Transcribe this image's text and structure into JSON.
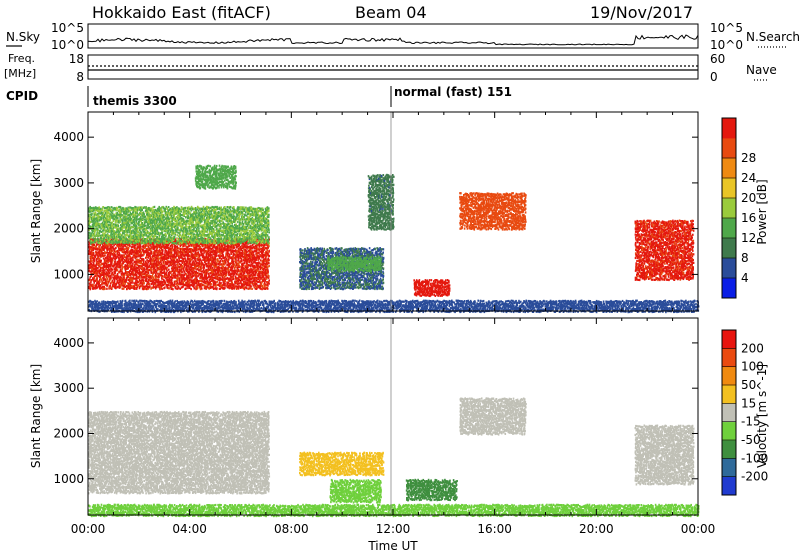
{
  "header": {
    "title": "Hokkaido East (fitACF)",
    "beam": "Beam 04",
    "date": "19/Nov/2017"
  },
  "colors": {
    "ink": "#000000",
    "background": "#ffffff",
    "no_data": "#ffffff"
  },
  "noise_panel": {
    "left_label": "N.Sky",
    "right_label": "N.Search",
    "left_ticks": [
      "10^5",
      "10^0"
    ],
    "right_ticks": [
      "10^5",
      "10^0"
    ]
  },
  "freq_panel": {
    "left_label": "Freq.",
    "left_unit": "[MHz]",
    "right_label": "Nave",
    "left_ticks": [
      "18",
      "8"
    ],
    "right_ticks": [
      "60",
      "0"
    ]
  },
  "cpid": {
    "label": "CPID",
    "entries": [
      "themis 3300",
      "normal (fast) 151"
    ]
  },
  "chart_data": [
    {
      "type": "heatmap",
      "title": "",
      "quantity": "Power",
      "xlabel": "",
      "ylabel": "Slant Range [km]",
      "colorbar_label": "Power [dB]",
      "colorbar_ticks": [
        "4",
        "8",
        "12",
        "16",
        "20",
        "24",
        "28"
      ],
      "colorbar_range": [
        0,
        32
      ],
      "colorbar_colors": [
        "#0a1ee6",
        "#2a4c9a",
        "#3f7a4c",
        "#4fa84a",
        "#9acb3c",
        "#e9c526",
        "#ef8a12",
        "#e84a10",
        "#e4180e"
      ],
      "ylim": [
        200,
        4550
      ],
      "yticks": [
        1000,
        2000,
        3000,
        4000
      ],
      "xlim": [
        "00:00",
        "24:00"
      ],
      "features": [
        {
          "t": [
            0.0,
            7.1
          ],
          "range": [
            700,
            1800
          ],
          "value": 29
        },
        {
          "t": [
            0.0,
            7.1
          ],
          "range": [
            1700,
            2500
          ],
          "value": 14
        },
        {
          "t": [
            4.2,
            5.8
          ],
          "range": [
            2900,
            3400
          ],
          "value": 12
        },
        {
          "t": [
            8.3,
            11.6
          ],
          "range": [
            700,
            1600
          ],
          "value": 7
        },
        {
          "t": [
            9.4,
            11.5
          ],
          "range": [
            1100,
            1400
          ],
          "value": 13
        },
        {
          "t": [
            11.0,
            12.0
          ],
          "range": [
            2000,
            3200
          ],
          "value": 8
        },
        {
          "t": [
            12.8,
            14.2
          ],
          "range": [
            550,
            900
          ],
          "value": 30
        },
        {
          "t": [
            14.6,
            17.2
          ],
          "range": [
            2000,
            2800
          ],
          "value": 26
        },
        {
          "t": [
            21.5,
            23.8
          ],
          "range": [
            900,
            2200
          ],
          "value": 29
        },
        {
          "t": [
            0.0,
            24.0
          ],
          "range": [
            200,
            450
          ],
          "value": 5
        }
      ]
    },
    {
      "type": "heatmap",
      "title": "",
      "quantity": "Velocity",
      "xlabel": "Time UT",
      "ylabel": "Slant Range [km]",
      "colorbar_label": "Velocity [m s^-1]",
      "colorbar_ticks": [
        "200",
        "100",
        "50",
        "15",
        "-15",
        "-50",
        "-100",
        "-200"
      ],
      "colorbar_range": [
        -250,
        250
      ],
      "colorbar_colors": [
        "#203bd0",
        "#2f6a9a",
        "#3f8f3f",
        "#6fd03c",
        "#c0c0b6",
        "#f3c020",
        "#f08a10",
        "#ea4a10",
        "#e8140e"
      ],
      "ylim": [
        200,
        4550
      ],
      "yticks": [
        1000,
        2000,
        3000,
        4000
      ],
      "xlim": [
        "00:00",
        "24:00"
      ],
      "xticks": [
        "00:00",
        "04:00",
        "08:00",
        "12:00",
        "16:00",
        "20:00",
        "00:00"
      ],
      "features": [
        {
          "t": [
            0.0,
            7.1
          ],
          "range": [
            700,
            2500
          ],
          "value": 0
        },
        {
          "t": [
            8.3,
            11.6
          ],
          "range": [
            1100,
            1600
          ],
          "value": 60
        },
        {
          "t": [
            9.5,
            11.5
          ],
          "range": [
            500,
            1000
          ],
          "value": -60
        },
        {
          "t": [
            12.5,
            14.5
          ],
          "range": [
            550,
            1000
          ],
          "value": -120
        },
        {
          "t": [
            14.6,
            17.2
          ],
          "range": [
            2000,
            2800
          ],
          "value": 0
        },
        {
          "t": [
            21.5,
            23.8
          ],
          "range": [
            900,
            2200
          ],
          "value": 0
        },
        {
          "t": [
            0.0,
            24.0
          ],
          "range": [
            200,
            450
          ],
          "value": -60
        }
      ]
    }
  ]
}
